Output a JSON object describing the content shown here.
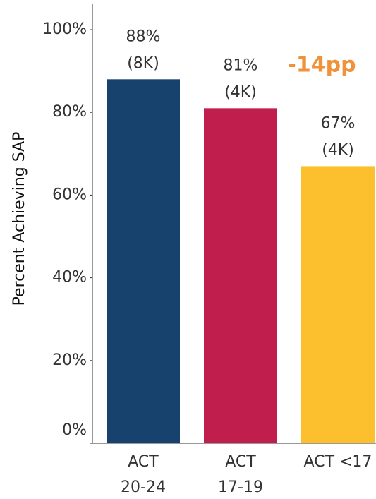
{
  "chart_data": {
    "type": "bar",
    "y_label": "Percent Achieving SAP",
    "categories": [
      [
        "ACT",
        "20-24"
      ],
      [
        "ACT",
        "17-19"
      ],
      [
        "ACT <17"
      ]
    ],
    "values": [
      88,
      81,
      67
    ],
    "value_labels": [
      "88%",
      "81%",
      "67%"
    ],
    "counts": [
      8000,
      4000,
      4000
    ],
    "count_labels": [
      "(8K)",
      "(4K)",
      "(4K)"
    ],
    "colors": [
      "#17426e",
      "#c01f4e",
      "#fcc02e"
    ],
    "annotation": "-14pp",
    "ylim": [
      0,
      100
    ],
    "yticks": [
      {
        "value": 0,
        "label": "0%"
      },
      {
        "value": 20,
        "label": "20%"
      },
      {
        "value": 40,
        "label": "40%"
      },
      {
        "value": 60,
        "label": "60%"
      },
      {
        "value": 80,
        "label": "80%"
      },
      {
        "value": 100,
        "label": "100%"
      }
    ],
    "grid": false
  }
}
